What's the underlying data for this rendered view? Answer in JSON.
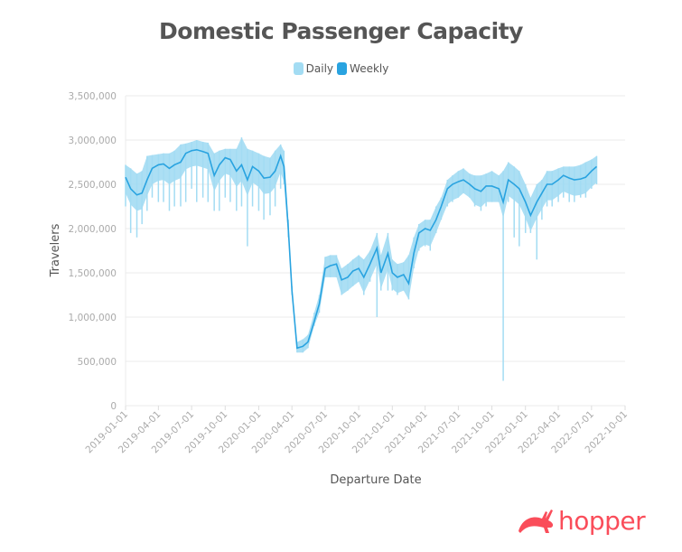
{
  "chart_data": {
    "type": "line",
    "title": "Domestic Passenger Capacity",
    "xlabel": "Departure Date",
    "ylabel": "Travelers",
    "ylim": [
      0,
      3500000
    ],
    "yticks": [
      0,
      500000,
      1000000,
      1500000,
      2000000,
      2500000,
      3000000,
      3500000
    ],
    "ytick_labels": [
      "0",
      "500,000",
      "1,000,000",
      "1,500,000",
      "2,000,000",
      "2,500,000",
      "3,000,000",
      "3,500,000"
    ],
    "xlim": [
      "2019-01-01",
      "2022-10-01"
    ],
    "xtick_labels": [
      "2019-01-01",
      "2019-04-01",
      "2019-07-01",
      "2019-10-01",
      "2020-01-01",
      "2020-04-01",
      "2020-07-01",
      "2020-10-01",
      "2021-01-01",
      "2021-04-01",
      "2021-07-01",
      "2021-10-01",
      "2022-01-01",
      "2022-04-01",
      "2022-07-01",
      "2022-10-01"
    ],
    "grid": true,
    "legend": "top-center",
    "x": [
      "2019-01-01",
      "2019-01-15",
      "2019-02-01",
      "2019-02-15",
      "2019-03-01",
      "2019-03-15",
      "2019-04-01",
      "2019-04-15",
      "2019-05-01",
      "2019-05-15",
      "2019-06-01",
      "2019-06-15",
      "2019-07-01",
      "2019-07-15",
      "2019-08-01",
      "2019-08-15",
      "2019-09-01",
      "2019-09-15",
      "2019-10-01",
      "2019-10-15",
      "2019-11-01",
      "2019-11-15",
      "2019-12-01",
      "2019-12-15",
      "2020-01-01",
      "2020-01-15",
      "2020-02-01",
      "2020-02-15",
      "2020-03-01",
      "2020-03-10",
      "2020-03-22",
      "2020-04-01",
      "2020-04-15",
      "2020-05-01",
      "2020-05-15",
      "2020-06-01",
      "2020-06-15",
      "2020-07-01",
      "2020-07-15",
      "2020-08-01",
      "2020-08-15",
      "2020-09-01",
      "2020-09-15",
      "2020-10-01",
      "2020-10-15",
      "2020-11-01",
      "2020-11-20",
      "2020-12-01",
      "2020-12-20",
      "2021-01-01",
      "2021-01-15",
      "2021-02-01",
      "2021-02-15",
      "2021-03-01",
      "2021-03-15",
      "2021-04-01",
      "2021-04-15",
      "2021-05-01",
      "2021-05-15",
      "2021-06-01",
      "2021-06-15",
      "2021-07-01",
      "2021-07-15",
      "2021-08-01",
      "2021-08-15",
      "2021-09-01",
      "2021-09-15",
      "2021-10-01",
      "2021-10-20",
      "2021-11-01",
      "2021-11-15",
      "2021-12-01",
      "2021-12-15",
      "2022-01-01",
      "2022-01-15",
      "2022-02-01",
      "2022-02-15",
      "2022-03-01",
      "2022-03-15",
      "2022-04-01",
      "2022-04-15",
      "2022-05-01",
      "2022-05-15",
      "2022-06-01",
      "2022-06-15",
      "2022-07-01",
      "2022-07-15"
    ],
    "series": [
      {
        "name": "Weekly",
        "color": "#29a3e0",
        "values": [
          2580000,
          2450000,
          2380000,
          2400000,
          2550000,
          2680000,
          2720000,
          2730000,
          2680000,
          2720000,
          2750000,
          2850000,
          2880000,
          2890000,
          2870000,
          2850000,
          2600000,
          2720000,
          2800000,
          2780000,
          2650000,
          2720000,
          2550000,
          2700000,
          2650000,
          2570000,
          2580000,
          2650000,
          2820000,
          2700000,
          2000000,
          1300000,
          650000,
          670000,
          720000,
          950000,
          1150000,
          1550000,
          1580000,
          1600000,
          1420000,
          1450000,
          1520000,
          1550000,
          1450000,
          1600000,
          1780000,
          1500000,
          1720000,
          1500000,
          1450000,
          1480000,
          1380000,
          1720000,
          1950000,
          2000000,
          1980000,
          2100000,
          2250000,
          2450000,
          2500000,
          2530000,
          2550000,
          2500000,
          2450000,
          2420000,
          2480000,
          2480000,
          2450000,
          2300000,
          2550000,
          2500000,
          2450000,
          2300000,
          2150000,
          2300000,
          2400000,
          2500000,
          2500000,
          2550000,
          2600000,
          2570000,
          2550000,
          2560000,
          2580000,
          2650000,
          2700000
        ]
      },
      {
        "name": "Daily",
        "color": "#a3dcf3",
        "low": [
          2250000,
          1950000,
          1900000,
          2050000,
          2200000,
          2350000,
          2300000,
          2300000,
          2200000,
          2250000,
          2250000,
          2300000,
          2450000,
          2300000,
          2350000,
          2300000,
          2200000,
          2200000,
          2350000,
          2300000,
          2200000,
          2250000,
          1800000,
          2250000,
          2200000,
          2100000,
          2150000,
          2250000,
          2450000,
          2500000,
          1900000,
          1250000,
          600000,
          600000,
          650000,
          900000,
          1050000,
          1450000,
          1450000,
          1450000,
          1250000,
          1300000,
          1350000,
          1400000,
          1250000,
          1400000,
          1000000,
          1300000,
          1300000,
          1300000,
          1250000,
          1300000,
          1200000,
          1550000,
          1750000,
          1800000,
          1750000,
          1950000,
          2100000,
          2250000,
          2300000,
          2350000,
          2400000,
          2350000,
          2250000,
          2200000,
          2250000,
          2300000,
          2300000,
          280000,
          2300000,
          1900000,
          1800000,
          1950000,
          1950000,
          1650000,
          2100000,
          2250000,
          2250000,
          2300000,
          2350000,
          2300000,
          2300000,
          2350000,
          2350000,
          2450000,
          2500000
        ],
        "high": [
          2720000,
          2680000,
          2620000,
          2650000,
          2820000,
          2830000,
          2840000,
          2850000,
          2850000,
          2880000,
          2950000,
          2960000,
          2980000,
          3000000,
          2980000,
          2970000,
          2850000,
          2880000,
          2900000,
          2900000,
          2900000,
          3030000,
          2900000,
          2880000,
          2850000,
          2820000,
          2800000,
          2880000,
          2950000,
          2880000,
          2100000,
          1350000,
          720000,
          750000,
          800000,
          1050000,
          1250000,
          1680000,
          1700000,
          1700000,
          1550000,
          1600000,
          1650000,
          1700000,
          1650000,
          1750000,
          1950000,
          1700000,
          1950000,
          1650000,
          1600000,
          1620000,
          1700000,
          1900000,
          2050000,
          2100000,
          2100000,
          2250000,
          2350000,
          2550000,
          2600000,
          2650000,
          2680000,
          2620000,
          2600000,
          2600000,
          2620000,
          2650000,
          2600000,
          2650000,
          2750000,
          2700000,
          2650000,
          2500000,
          2350000,
          2500000,
          2550000,
          2650000,
          2650000,
          2680000,
          2700000,
          2700000,
          2700000,
          2720000,
          2750000,
          2780000,
          2820000
        ]
      }
    ]
  },
  "legend": {
    "daily_label": "Daily",
    "weekly_label": "Weekly"
  },
  "logo": {
    "text": "hopper",
    "color": "#fa4d5a"
  }
}
